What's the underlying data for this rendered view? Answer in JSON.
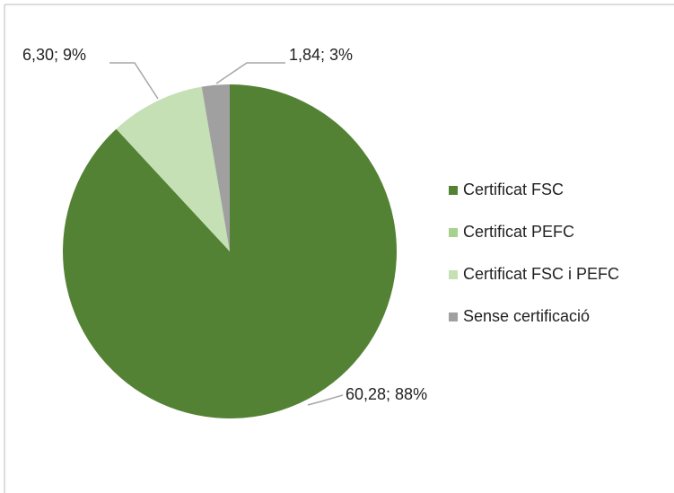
{
  "chart_data": {
    "type": "pie",
    "categories": [
      "Certificat FSC",
      "Certificat PEFC",
      "Certificat FSC i PEFC",
      "Sense certificació"
    ],
    "values": [
      60.28,
      0,
      6.3,
      1.84
    ],
    "value_labels": [
      "60,28; 88%",
      null,
      "6,30; 9%",
      "1,84; 3%"
    ],
    "colors": [
      "#548235",
      "#a9d18e",
      "#c5e0b4",
      "#a0a0a0"
    ],
    "legend": "right"
  }
}
